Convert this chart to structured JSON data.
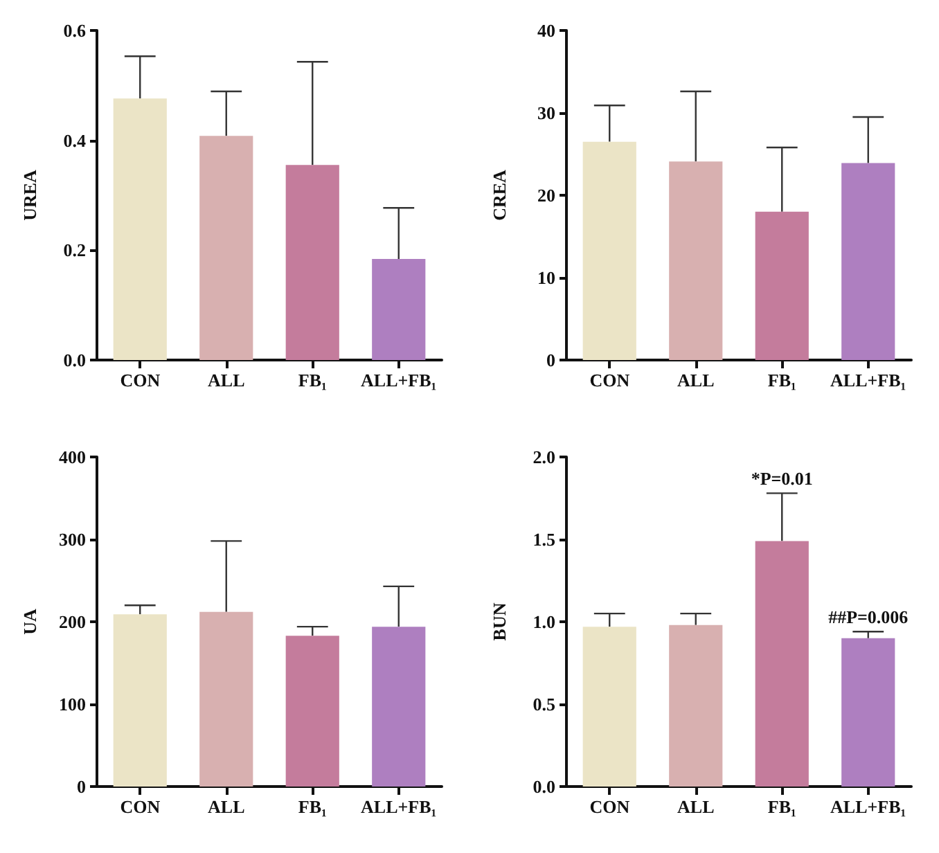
{
  "chart_data": [
    {
      "type": "bar",
      "ylabel": "UREA",
      "categories": [
        "CON",
        "ALL",
        "FB₁",
        "ALL+FB₁"
      ],
      "values": [
        0.476,
        0.408,
        0.355,
        0.184
      ],
      "errors": [
        [
          0.476,
          0.553
        ],
        [
          0.408,
          0.489
        ],
        [
          0.355,
          0.543
        ],
        [
          0.184,
          0.277
        ]
      ],
      "colors": [
        "#ebe4c6",
        "#d8b0b0",
        "#c47c9c",
        "#ae7fc0"
      ],
      "ylim": [
        0,
        0.6
      ],
      "yticks": [
        {
          "value": 0,
          "label": "0.0"
        },
        {
          "value": 0.2,
          "label": "0.2"
        },
        {
          "value": 0.4,
          "label": "0.4"
        },
        {
          "value": 0.6,
          "label": "0.6"
        }
      ],
      "grid": false
    },
    {
      "type": "bar",
      "ylabel": "CREA",
      "categories": [
        "CON",
        "ALL",
        "FB₁",
        "ALL+FB₁"
      ],
      "values": [
        26.5,
        24.1,
        18.0,
        23.9
      ],
      "errors": [
        [
          26.5,
          30.9
        ],
        [
          24.1,
          32.6
        ],
        [
          18.0,
          25.8
        ],
        [
          23.9,
          29.5
        ]
      ],
      "colors": [
        "#ebe4c6",
        "#d8b0b0",
        "#c47c9c",
        "#ae7fc0"
      ],
      "ylim": [
        0,
        40
      ],
      "yticks": [
        0,
        10,
        20,
        30,
        40
      ],
      "grid": false
    },
    {
      "type": "bar",
      "ylabel": "UA",
      "categories": [
        "CON",
        "ALL",
        "FB₁",
        "ALL+FB₁"
      ],
      "values": [
        209,
        212,
        183,
        194
      ],
      "errors": [
        [
          209,
          220
        ],
        [
          212,
          298
        ],
        [
          183,
          194
        ],
        [
          194,
          243
        ]
      ],
      "colors": [
        "#ebe4c6",
        "#d8b0b0",
        "#c47c9c",
        "#ae7fc0"
      ],
      "ylim": [
        0,
        400
      ],
      "yticks": [
        0,
        100,
        200,
        300,
        400
      ],
      "grid": false
    },
    {
      "type": "bar",
      "ylabel": "BUN",
      "categories": [
        "CON",
        "ALL",
        "FB₁",
        "ALL+FB₁"
      ],
      "values": [
        0.97,
        0.98,
        1.49,
        0.9
      ],
      "errors": [
        [
          0.97,
          1.05
        ],
        [
          0.98,
          1.05
        ],
        [
          1.49,
          1.78
        ],
        [
          0.9,
          0.94
        ]
      ],
      "colors": [
        "#ebe4c6",
        "#d8b0b0",
        "#c47c9c",
        "#ae7fc0"
      ],
      "ylim": [
        0,
        2.0
      ],
      "yticks": [
        {
          "value": 0,
          "label": "0.0"
        },
        {
          "value": 0.5,
          "label": "0.5"
        },
        {
          "value": 1.0,
          "label": "1.0"
        },
        {
          "value": 1.5,
          "label": "1.5"
        },
        {
          "value": 2.0,
          "label": "2.0"
        }
      ],
      "grid": false,
      "annotations": [
        {
          "text": "*P=0.01",
          "x": "FB₁",
          "y": 1.78
        },
        {
          "text": "##P=0.006",
          "x": "ALL+FB₁",
          "y": 0.94
        }
      ]
    }
  ]
}
